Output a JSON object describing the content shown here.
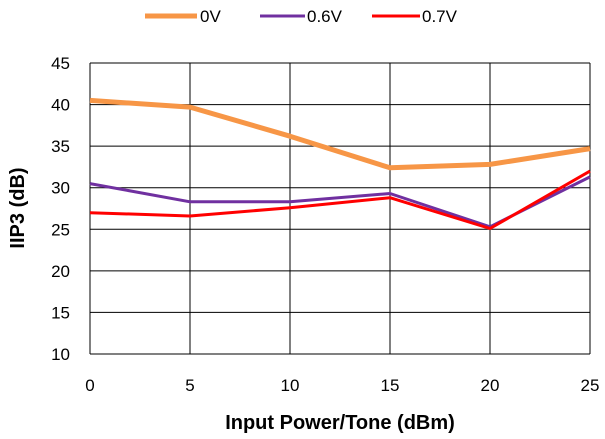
{
  "chart_data": {
    "type": "line",
    "xlabel": "Input Power/Tone (dBm)",
    "ylabel": "IIP3 (dB)",
    "x": [
      0,
      5,
      10,
      15,
      20,
      25
    ],
    "xlim": [
      0,
      25
    ],
    "ylim": [
      10,
      45
    ],
    "xticks": [
      "0",
      "5",
      "10",
      "15",
      "20",
      "25"
    ],
    "yticks": [
      "10",
      "15",
      "20",
      "25",
      "30",
      "35",
      "40",
      "45"
    ],
    "grid": true,
    "legend_position": "top",
    "series": [
      {
        "name": "0V",
        "color": "#F79646",
        "values": [
          40.5,
          39.7,
          36.2,
          32.4,
          32.8,
          34.7
        ]
      },
      {
        "name": "0.6V",
        "color": "#7030A0",
        "values": [
          30.5,
          28.3,
          28.3,
          29.3,
          25.3,
          31.3
        ]
      },
      {
        "name": "0.7V",
        "color": "#FF0000",
        "values": [
          27.0,
          26.6,
          27.6,
          28.8,
          25.1,
          32.0
        ]
      }
    ]
  }
}
